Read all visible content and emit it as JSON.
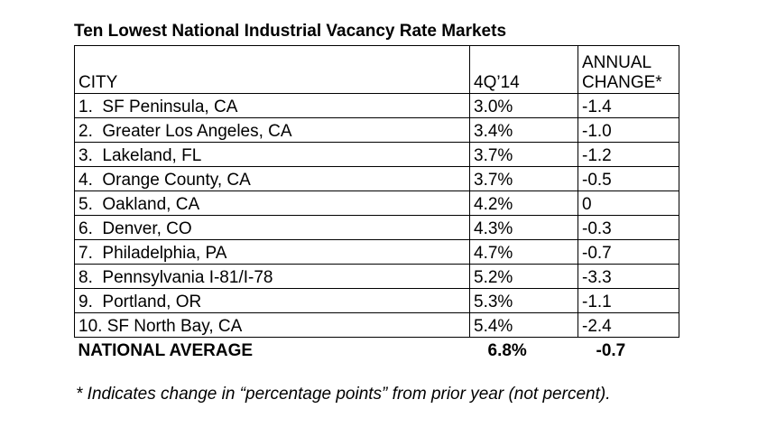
{
  "title": "Ten Lowest National Industrial Vacancy Rate Markets",
  "table": {
    "header": [
      "CITY",
      "4Q’14",
      "ANNUAL CHANGE*"
    ],
    "rows": [
      [
        "1.  SF Peninsula, CA",
        "3.0%",
        "-1.4"
      ],
      [
        "2.  Greater Los Angeles, CA",
        "3.4%",
        "-1.0"
      ],
      [
        "3.  Lakeland, FL",
        "3.7%",
        "-1.2"
      ],
      [
        "4.  Orange County, CA",
        "3.7%",
        "-0.5"
      ],
      [
        "5.  Oakland, CA",
        "4.2%",
        "0"
      ],
      [
        "6.  Denver, CO",
        "4.3%",
        "-0.3"
      ],
      [
        "7.  Philadelphia, PA",
        "4.7%",
        "-0.7"
      ],
      [
        "8.  Pennsylvania I-81/I-78",
        "5.2%",
        "-3.3"
      ],
      [
        "9.  Portland, OR",
        "5.3%",
        "-1.1"
      ],
      [
        "10. SF North Bay, CA",
        "5.4%",
        "-2.4"
      ]
    ],
    "total": [
      "NATIONAL AVERAGE",
      "6.8%",
      "-0.7"
    ]
  },
  "footnote": "* Indicates change in “percentage points” from prior year (not percent)."
}
